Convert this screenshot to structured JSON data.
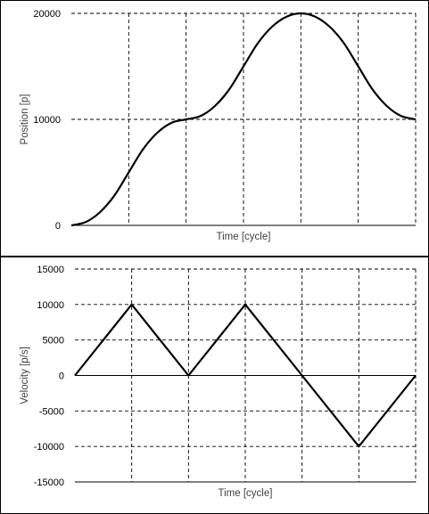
{
  "chart_data": [
    {
      "type": "line",
      "title": "",
      "xlabel": "Time [cycle]",
      "ylabel": "Position [p]",
      "ylim": [
        0,
        20000
      ],
      "yticks": [
        0,
        10000,
        20000
      ],
      "ytick_labels": [
        "0",
        "10000",
        "20000"
      ],
      "xlim": [
        0,
        6
      ],
      "x_gridlines": 6,
      "grid": "dashed",
      "legend": "none",
      "line_color": "#000000",
      "series": [
        {
          "x": [
            0,
            0.25,
            0.5,
            0.75,
            1,
            1.25,
            1.5,
            1.75,
            2,
            2.25,
            2.5,
            2.75,
            3,
            3.25,
            3.5,
            3.75,
            4,
            4.25,
            4.5,
            4.75,
            5,
            5.25,
            5.5,
            5.75,
            6
          ],
          "values": [
            0,
            312,
            1250,
            2812,
            5000,
            7187,
            8750,
            9688,
            10000,
            10312,
            11250,
            12812,
            15000,
            17187,
            18750,
            19688,
            20000,
            19688,
            18750,
            17187,
            15000,
            12812,
            11250,
            10312,
            10000
          ]
        }
      ]
    },
    {
      "type": "line",
      "title": "",
      "xlabel": "Time [cycle]",
      "ylabel": "Velocity [p/s]",
      "ylim": [
        -15000,
        15000
      ],
      "yticks": [
        -15000,
        -10000,
        -5000,
        0,
        5000,
        10000,
        15000
      ],
      "ytick_labels": [
        "-15000",
        "-10000",
        "-5000",
        "0",
        "5000",
        "10000",
        "15000"
      ],
      "xlim": [
        0,
        6
      ],
      "x_gridlines": 6,
      "grid": "dashed",
      "legend": "none",
      "line_color": "#000000",
      "series": [
        {
          "x": [
            0,
            1,
            2,
            3,
            4,
            5,
            6
          ],
          "values": [
            0,
            10000,
            0,
            10000,
            0,
            -10000,
            0
          ]
        }
      ]
    }
  ]
}
